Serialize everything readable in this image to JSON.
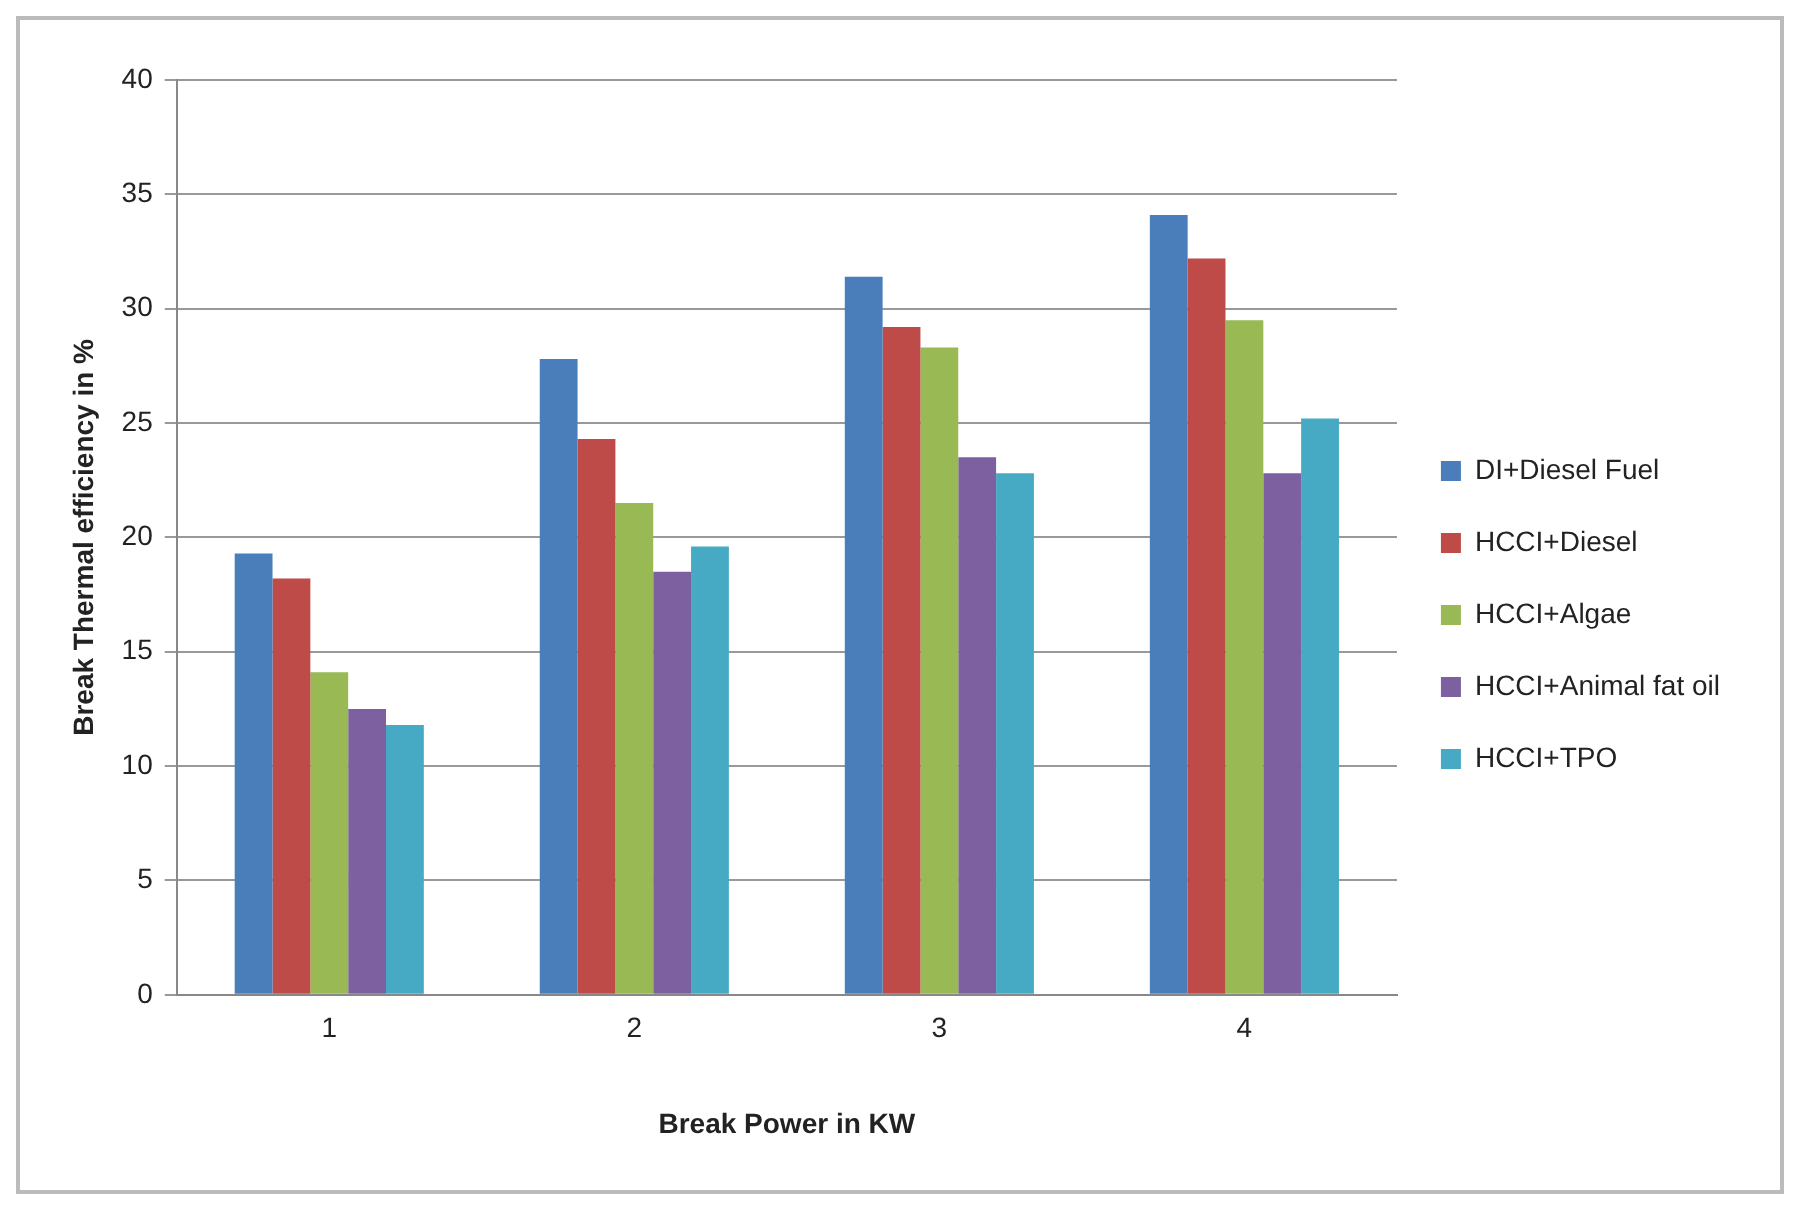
{
  "chart_data": {
    "type": "bar",
    "xlabel": "Break Power in KW",
    "ylabel": "Break Thermal efficiency in %",
    "categories": [
      "1",
      "2",
      "3",
      "4"
    ],
    "series": [
      {
        "name": "DI+Diesel Fuel",
        "color": "#4a7ebb",
        "values": [
          19.3,
          27.8,
          31.4,
          34.1
        ]
      },
      {
        "name": "HCCI+Diesel",
        "color": "#be4b48",
        "values": [
          18.2,
          24.3,
          29.2,
          32.2
        ]
      },
      {
        "name": "HCCI+Algae",
        "color": "#98b954",
        "values": [
          14.1,
          21.5,
          28.3,
          29.5
        ]
      },
      {
        "name": "HCCI+Animal fat oil",
        "color": "#7d60a0",
        "values": [
          12.5,
          18.5,
          23.5,
          22.8
        ]
      },
      {
        "name": "HCCI+TPO",
        "color": "#46aac5",
        "values": [
          11.8,
          19.6,
          22.8,
          25.2
        ]
      }
    ],
    "ylim": [
      0,
      40
    ],
    "yticks": [
      0,
      5,
      10,
      15,
      20,
      25,
      30,
      35,
      40
    ],
    "grid": "y",
    "legend": "right"
  }
}
